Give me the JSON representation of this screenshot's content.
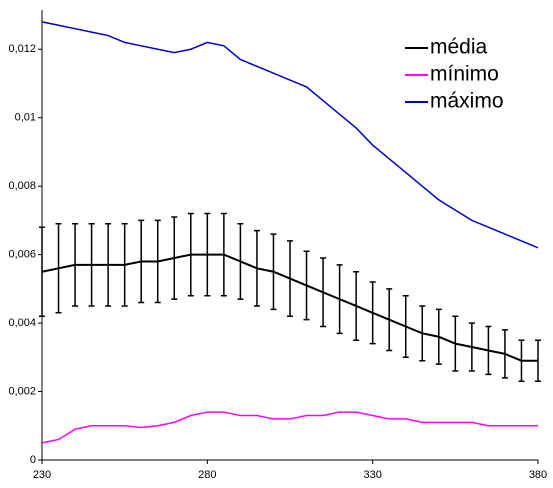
{
  "chart_data": {
    "type": "line",
    "x": [
      230,
      235,
      240,
      245,
      250,
      255,
      260,
      265,
      270,
      275,
      280,
      285,
      290,
      295,
      300,
      305,
      310,
      315,
      320,
      325,
      330,
      335,
      340,
      345,
      350,
      355,
      360,
      365,
      370,
      375,
      380
    ],
    "series": [
      {
        "name": "média",
        "color": "#000000",
        "values": [
          0.0055,
          0.0056,
          0.0057,
          0.0057,
          0.0057,
          0.0057,
          0.0058,
          0.0058,
          0.0059,
          0.006,
          0.006,
          0.006,
          0.0058,
          0.0056,
          0.0055,
          0.0053,
          0.0051,
          0.0049,
          0.0047,
          0.0045,
          0.0043,
          0.0041,
          0.0039,
          0.0037,
          0.0036,
          0.0034,
          0.0033,
          0.0032,
          0.0031,
          0.0029,
          0.0029
        ],
        "errors": [
          0.0013,
          0.0013,
          0.0012,
          0.0012,
          0.0012,
          0.0012,
          0.0012,
          0.0012,
          0.0012,
          0.0012,
          0.0012,
          0.0012,
          0.0011,
          0.0011,
          0.0011,
          0.0011,
          0.001,
          0.001,
          0.001,
          0.001,
          0.0009,
          0.0009,
          0.0009,
          0.0008,
          0.0008,
          0.0008,
          0.0007,
          0.0007,
          0.0007,
          0.0006,
          0.0006
        ]
      },
      {
        "name": "mínimo",
        "color": "#ff00ff",
        "values": [
          0.0005,
          0.0006,
          0.0009,
          0.001,
          0.001,
          0.001,
          0.00095,
          0.001,
          0.0011,
          0.0013,
          0.0014,
          0.0014,
          0.0013,
          0.0013,
          0.0012,
          0.0012,
          0.0013,
          0.0013,
          0.0014,
          0.0014,
          0.0013,
          0.0012,
          0.0012,
          0.0011,
          0.0011,
          0.0011,
          0.0011,
          0.001,
          0.001,
          0.001,
          0.001
        ]
      },
      {
        "name": "máximo",
        "color": "#0000cc",
        "values": [
          0.0128,
          0.0127,
          0.0126,
          0.0125,
          0.0124,
          0.0122,
          0.0121,
          0.012,
          0.0119,
          0.012,
          0.0122,
          0.0121,
          0.0117,
          0.0115,
          0.0113,
          0.0111,
          0.0109,
          0.0105,
          0.0101,
          0.0097,
          0.0092,
          0.0088,
          0.0084,
          0.008,
          0.0076,
          0.0073,
          0.007,
          0.0068,
          0.0066,
          0.0064,
          0.0062
        ]
      }
    ],
    "xlim": [
      230,
      380
    ],
    "xticks": [
      230,
      280,
      330,
      380
    ],
    "ylim": [
      0,
      0.013
    ],
    "yticks": [
      0,
      {
        "value": 0.002,
        "label": "0,002"
      },
      {
        "value": 0.004,
        "label": "0,004"
      },
      {
        "value": 0.006,
        "label": "0,006"
      },
      {
        "value": 0.008,
        "label": "0,008"
      },
      {
        "value": 0.01,
        "label": "0,01"
      },
      {
        "value": 0.012,
        "label": "0,012"
      }
    ],
    "legend": "upper right"
  }
}
